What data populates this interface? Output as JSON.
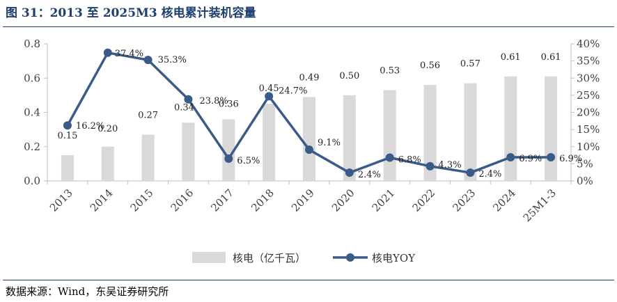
{
  "title": "图 31：2013 至 2025M3 核电累计装机容量",
  "source": "数据来源：Wind，东吴证券研究所",
  "chart_data": {
    "type": "bar+line",
    "categories": [
      "2013",
      "2014",
      "2015",
      "2016",
      "2017",
      "2018",
      "2019",
      "2020",
      "2021",
      "2022",
      "2023",
      "2024",
      "25M1-3"
    ],
    "series": [
      {
        "name": "核电（亿千瓦）",
        "type": "bar",
        "axis": "left",
        "color": "#d9d9d9",
        "values": [
          0.15,
          0.2,
          0.27,
          0.34,
          0.36,
          0.45,
          0.49,
          0.5,
          0.53,
          0.56,
          0.57,
          0.61,
          0.61
        ],
        "labels": [
          "0.15",
          "0.20",
          "0.27",
          "0.34",
          "0.36",
          "0.45",
          "0.49",
          "0.50",
          "0.53",
          "0.56",
          "0.57",
          "0.61",
          "0.61"
        ]
      },
      {
        "name": "核电YOY",
        "type": "line",
        "axis": "right",
        "color": "#3a5b88",
        "values": [
          16.2,
          37.4,
          35.3,
          23.8,
          6.5,
          24.7,
          9.1,
          2.4,
          6.8,
          4.3,
          2.4,
          6.9,
          6.9
        ],
        "labels": [
          "16.2%",
          "37.4%",
          "35.3%",
          "23.8%",
          "6.5%",
          "24.7%",
          "9.1%",
          "2.4%",
          "6.8%",
          "4.3%",
          "2.4%",
          "6.9%",
          "6.9%"
        ]
      }
    ],
    "left_axis": {
      "ylim": [
        0,
        0.8
      ],
      "ticks": [
        "0.0",
        "0.2",
        "0.4",
        "0.6",
        "0.8"
      ]
    },
    "right_axis": {
      "ylim": [
        0,
        40
      ],
      "ticks": [
        "0%",
        "5%",
        "10%",
        "15%",
        "20%",
        "25%",
        "30%",
        "35%",
        "40%"
      ]
    },
    "legend_position": "bottom",
    "grid": false
  }
}
